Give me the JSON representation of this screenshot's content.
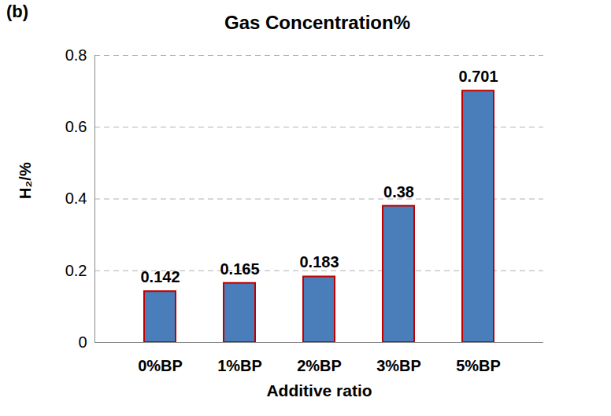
{
  "chart_data": {
    "type": "bar",
    "title": "Gas Concentration%",
    "annotations": [
      "(b)"
    ],
    "x_label": "Additive ratio",
    "y_label": "H₂/%",
    "categories": [
      "0%BP",
      "1%BP",
      "2%BP",
      "3%BP",
      "5%BP"
    ],
    "values": [
      0.142,
      0.165,
      0.183,
      0.38,
      0.701
    ],
    "color": "#4a7ebb",
    "ylim": [
      0,
      0.8
    ],
    "yticks": [
      0,
      0.2,
      0.4,
      0.6,
      0.8
    ],
    "grid": true,
    "data_labels": true
  }
}
